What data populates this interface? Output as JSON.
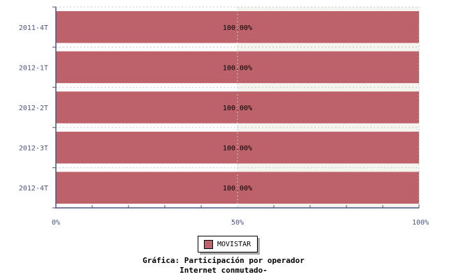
{
  "chart_data": {
    "type": "bar",
    "orientation": "horizontal",
    "stacked": true,
    "categories": [
      "2011-4T",
      "2012-1T",
      "2012-2T",
      "2012-3T",
      "2012-4T"
    ],
    "series": [
      {
        "name": "MOVISTAR",
        "values": [
          100,
          100,
          100,
          100,
          100
        ],
        "color": "#bd626a"
      }
    ],
    "data_labels": [
      "100.00%",
      "100.00%",
      "100.00%",
      "100.00%",
      "100.00%"
    ],
    "xlim": [
      0,
      100
    ],
    "x_ticks": [
      "0%",
      "50%",
      "100%"
    ],
    "grid": true,
    "legend_position": "bottom",
    "title": "Gráfica: Participación por operador",
    "subtitle": "Internet conmutado-",
    "colors": {
      "axis": "#4a5680",
      "bar": "#bd626a"
    }
  }
}
